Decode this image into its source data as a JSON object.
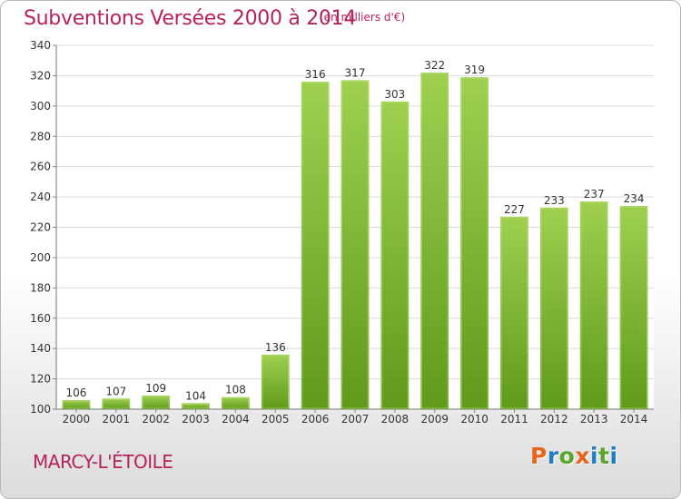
{
  "header": {
    "title": "Subventions Versées 2000 à 2014",
    "subtitle": "(en milliers d'€)"
  },
  "footer": {
    "city": "MARCY-L'ÉTOILE",
    "logo_letters": [
      "P",
      "r",
      "o",
      "x",
      "i",
      "t",
      "i"
    ]
  },
  "colors": {
    "accent": "#b5225e",
    "bar_light": "#9ccd4e",
    "bar_dark": "#6fa225",
    "logo": [
      "#e8641c",
      "#1f7fc4",
      "#5ba52a",
      "#e8641c",
      "#1f7fc4",
      "#5ba52a",
      "#1f7fc4"
    ]
  },
  "chart_data": {
    "type": "bar",
    "title": "Subventions Versées 2000 à 2014",
    "subtitle": "(en milliers d'€)",
    "categories": [
      "2000",
      "2001",
      "2002",
      "2003",
      "2004",
      "2005",
      "2006",
      "2007",
      "2008",
      "2009",
      "2010",
      "2011",
      "2012",
      "2013",
      "2014"
    ],
    "values": [
      106,
      107,
      109,
      104,
      108,
      136,
      316,
      317,
      303,
      322,
      319,
      227,
      233,
      237,
      234
    ],
    "ylim": [
      100,
      340
    ],
    "yticks": [
      100,
      120,
      140,
      160,
      180,
      200,
      220,
      240,
      260,
      280,
      300,
      320,
      340
    ],
    "grid": true,
    "legend": "none"
  }
}
